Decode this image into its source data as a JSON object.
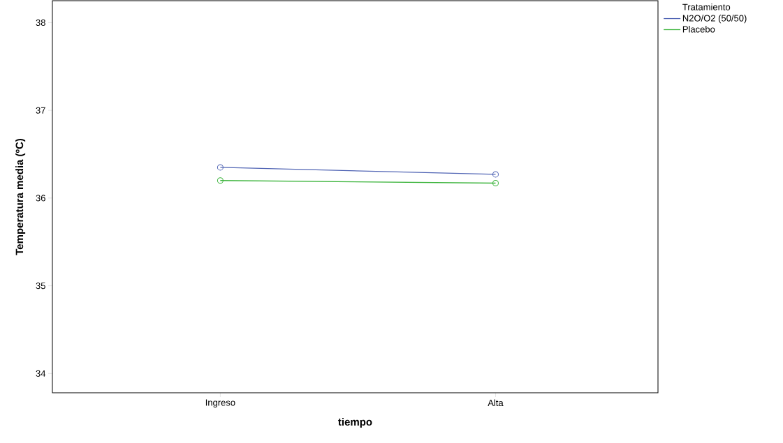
{
  "chart_data": {
    "type": "line",
    "xlabel": "tiempo",
    "ylabel": "Temperatura media (ºC)",
    "legend_title": "Tratamiento",
    "categories": [
      "Ingreso",
      "Alta"
    ],
    "series": [
      {
        "name": "N2O/O2 (50/50)",
        "color": "#5064b4",
        "values": [
          36.35,
          36.27
        ]
      },
      {
        "name": "Placebo",
        "color": "#3cb43c",
        "values": [
          36.2,
          36.17
        ]
      }
    ],
    "ylim": [
      33.78,
      38.25
    ],
    "yticks": [
      34,
      35,
      36,
      37,
      38
    ],
    "marker": "circle",
    "line_style": "solid",
    "legend": "top right",
    "grid": false
  }
}
